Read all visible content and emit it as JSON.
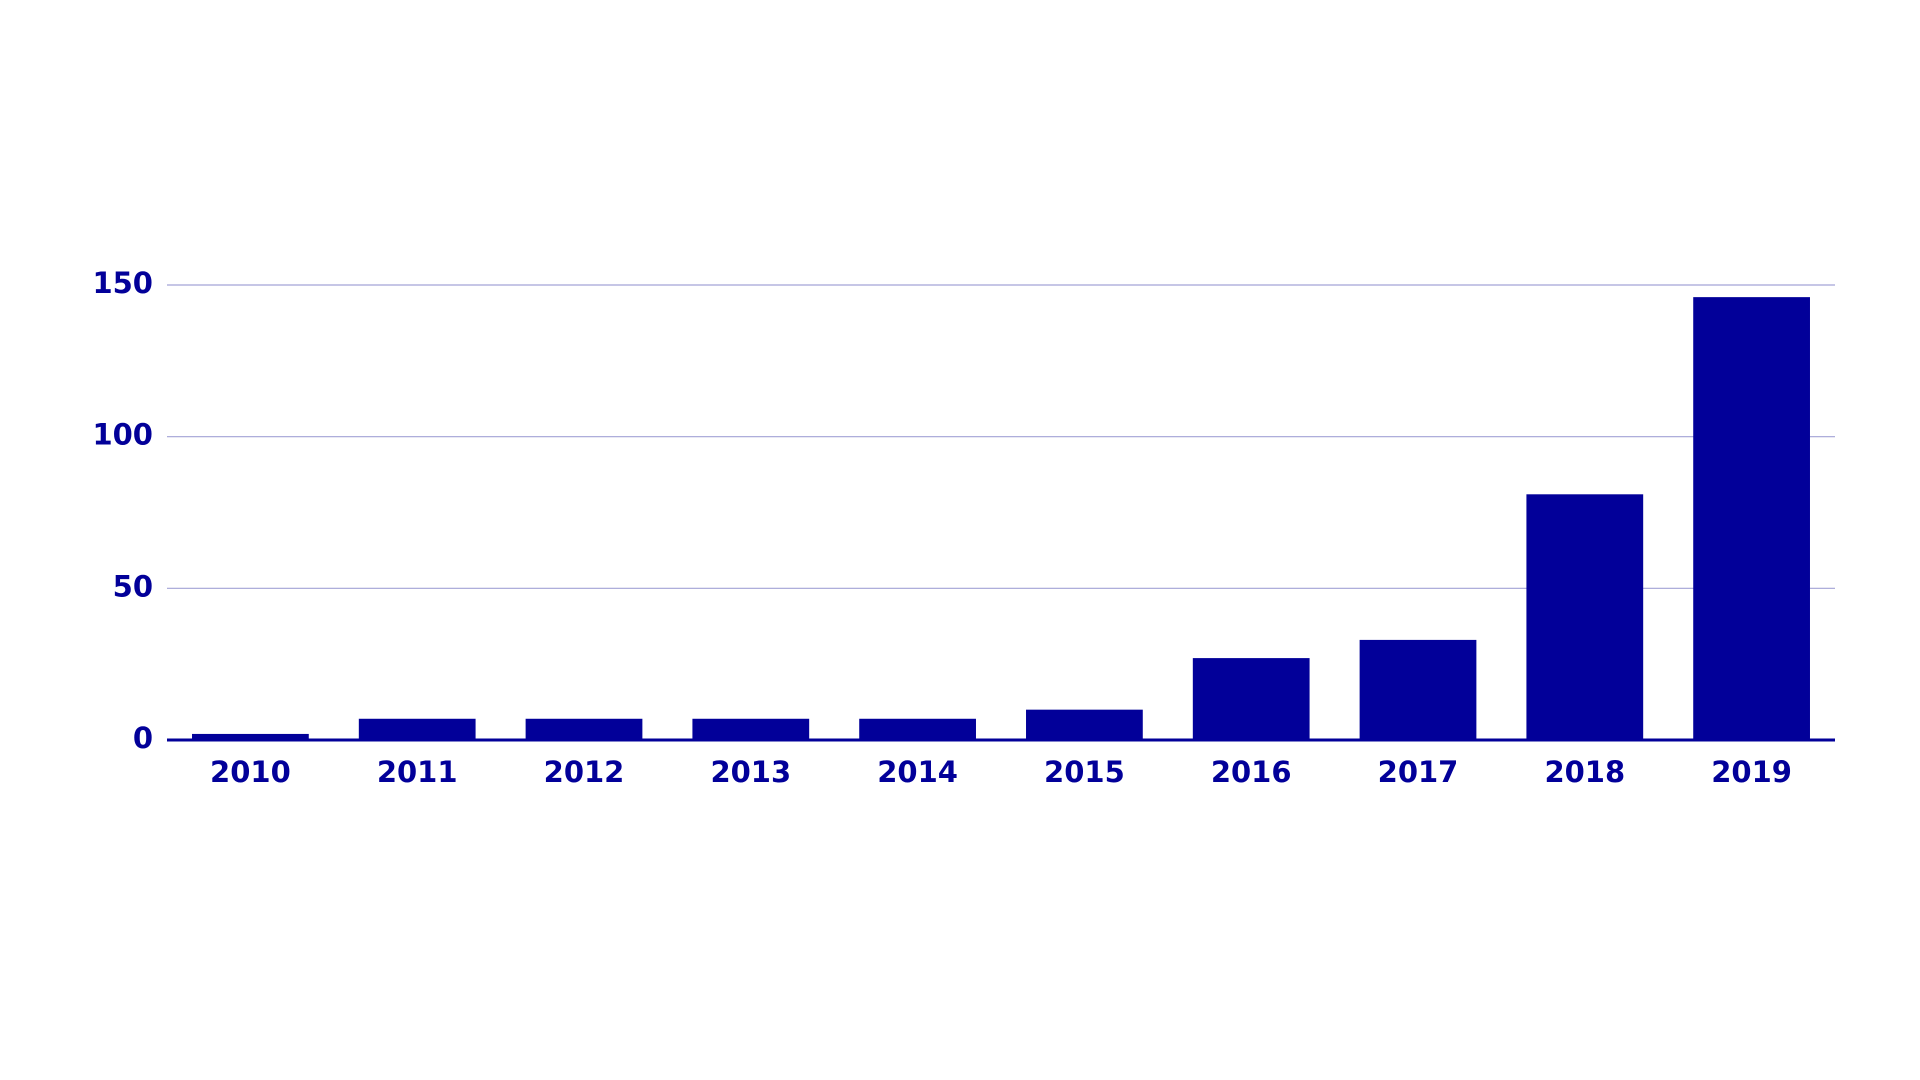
{
  "chart_data": {
    "type": "bar",
    "categories": [
      "2010",
      "2011",
      "2012",
      "2013",
      "2014",
      "2015",
      "2016",
      "2017",
      "2018",
      "2019"
    ],
    "values": [
      2,
      7,
      7,
      7,
      7,
      10,
      27,
      33,
      81,
      146
    ],
    "color": "#020099",
    "ylim": [
      0,
      150
    ],
    "yticks": [
      0,
      50,
      100,
      150
    ],
    "grid": true
  }
}
